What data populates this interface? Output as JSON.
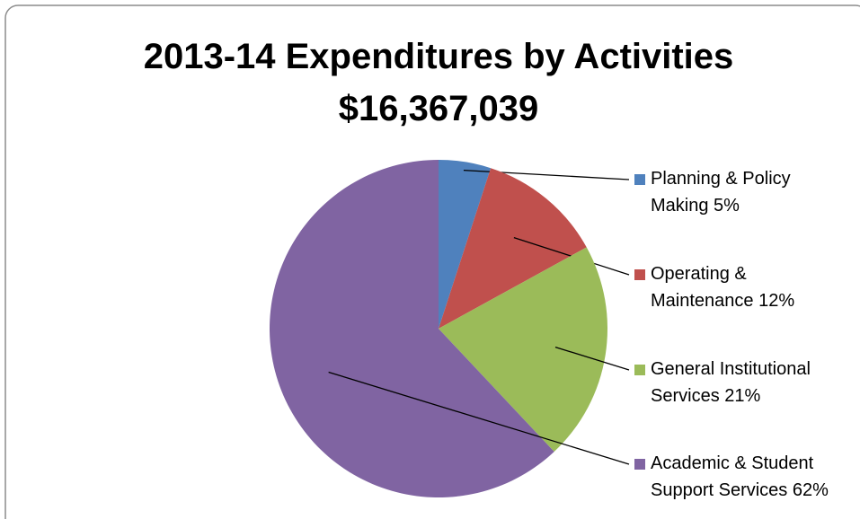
{
  "chart_data": {
    "type": "pie",
    "title": "2013-14 Expenditures by Activities",
    "subtitle": "$16,367,039",
    "categories": [
      "Planning & Policy Making",
      "Operating & Maintenance",
      "General Institutional Services",
      "Academic & Student Support Services"
    ],
    "values": [
      5,
      12,
      21,
      62
    ],
    "value_labels": [
      "5%",
      "12%",
      "21%",
      "62%"
    ],
    "colors": [
      "#4f81bd",
      "#c0504d",
      "#9bbb59",
      "#8064a2"
    ],
    "legend": "right"
  }
}
